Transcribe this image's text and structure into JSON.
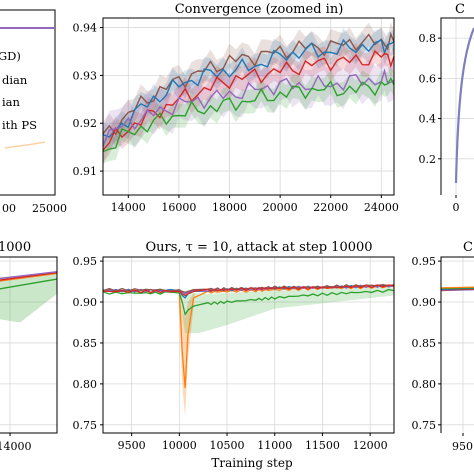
{
  "chart_data": [
    {
      "id": "top-left",
      "type": "line",
      "title": "",
      "xlabel": "",
      "ylabel": "",
      "xticks": [
        "00",
        "25000"
      ],
      "legend_entries": [
        "GD)",
        "dian",
        "ian",
        "ith PS"
      ]
    },
    {
      "id": "top-middle",
      "type": "line",
      "title": "Convergence (zoomed in)",
      "xlabel": "",
      "ylabel": "",
      "xlim": [
        13000,
        24500
      ],
      "ylim": [
        0.905,
        0.942
      ],
      "xticks": [
        14000,
        16000,
        18000,
        20000,
        22000,
        24000
      ],
      "yticks": [
        "0.91",
        "0.92",
        "0.93",
        "0.94"
      ],
      "grid": true,
      "x": [
        13000,
        14000,
        15000,
        16000,
        17000,
        18000,
        19000,
        20000,
        21000,
        22000,
        23000,
        24000,
        24500
      ],
      "series": [
        {
          "color": "#8c564b",
          "values": [
            0.917,
            0.922,
            0.926,
            0.929,
            0.931,
            0.933,
            0.934,
            0.935,
            0.936,
            0.936,
            0.937,
            0.937,
            0.937
          ]
        },
        {
          "color": "#1f77b4",
          "values": [
            0.916,
            0.921,
            0.925,
            0.928,
            0.93,
            0.931,
            0.932,
            0.934,
            0.935,
            0.935,
            0.936,
            0.936,
            0.937
          ]
        },
        {
          "color": "#d62728",
          "values": [
            0.915,
            0.919,
            0.922,
            0.925,
            0.927,
            0.929,
            0.93,
            0.931,
            0.932,
            0.933,
            0.933,
            0.934,
            0.934
          ]
        },
        {
          "color": "#9467bd",
          "values": [
            0.917,
            0.92,
            0.922,
            0.924,
            0.925,
            0.926,
            0.927,
            0.928,
            0.928,
            0.928,
            0.929,
            0.929,
            0.929
          ]
        },
        {
          "color": "#2ca02c",
          "values": [
            0.914,
            0.918,
            0.92,
            0.922,
            0.923,
            0.924,
            0.925,
            0.926,
            0.927,
            0.927,
            0.927,
            0.928,
            0.928
          ]
        }
      ]
    },
    {
      "id": "top-right",
      "type": "line",
      "title": "C",
      "xlabel": "",
      "ylabel": "",
      "xticks": [
        "0"
      ],
      "yticks": [
        "0.2",
        "0.4",
        "0.6",
        "0.8"
      ],
      "grid": true
    },
    {
      "id": "bottom-left",
      "type": "line",
      "title": "1000",
      "xlabel": "",
      "ylabel": "",
      "xticks": [
        "14000"
      ],
      "grid": true
    },
    {
      "id": "bottom-middle",
      "type": "line",
      "title": "Ours, τ = 10, attack at step 10000",
      "xlabel": "Training step",
      "ylabel": "",
      "xlim": [
        9200,
        12250
      ],
      "ylim": [
        0.74,
        0.955
      ],
      "xticks": [
        9500,
        10000,
        10500,
        11000,
        11500,
        12000
      ],
      "yticks": [
        "0.75",
        "0.80",
        "0.85",
        "0.90",
        "0.95"
      ],
      "grid": true,
      "x": [
        9200,
        9600,
        9900,
        10000,
        10030,
        10060,
        10090,
        10150,
        10300,
        10500,
        10800,
        11000,
        11300,
        11600,
        11900,
        12250
      ],
      "series": [
        {
          "color": "#ff7f0e",
          "values": [
            0.913,
            0.913,
            0.913,
            0.913,
            0.84,
            0.795,
            0.86,
            0.905,
            0.912,
            0.913,
            0.914,
            0.915,
            0.916,
            0.917,
            0.918,
            0.919
          ]
        },
        {
          "color": "#2ca02c",
          "values": [
            0.911,
            0.911,
            0.911,
            0.911,
            0.9,
            0.885,
            0.89,
            0.895,
            0.898,
            0.9,
            0.903,
            0.905,
            0.908,
            0.91,
            0.912,
            0.914
          ]
        },
        {
          "color": "#1f77b4",
          "values": [
            0.914,
            0.914,
            0.914,
            0.914,
            0.908,
            0.905,
            0.91,
            0.913,
            0.914,
            0.915,
            0.916,
            0.917,
            0.918,
            0.918,
            0.919,
            0.92
          ]
        },
        {
          "color": "#9467bd",
          "values": [
            0.914,
            0.914,
            0.914,
            0.914,
            0.912,
            0.91,
            0.912,
            0.914,
            0.915,
            0.915,
            0.916,
            0.917,
            0.918,
            0.918,
            0.919,
            0.92
          ]
        },
        {
          "color": "#8c564b",
          "values": [
            0.915,
            0.915,
            0.915,
            0.915,
            0.913,
            0.912,
            0.913,
            0.915,
            0.916,
            0.916,
            0.917,
            0.918,
            0.918,
            0.919,
            0.92,
            0.921
          ]
        },
        {
          "color": "#d62728",
          "values": [
            0.913,
            0.913,
            0.913,
            0.913,
            0.91,
            0.908,
            0.91,
            0.913,
            0.914,
            0.915,
            0.916,
            0.917,
            0.917,
            0.918,
            0.919,
            0.92
          ]
        }
      ]
    },
    {
      "id": "bottom-right",
      "type": "line",
      "title": "C",
      "xlabel": "",
      "ylabel": "",
      "xticks": [
        "950"
      ],
      "yticks": [
        "0.75",
        "0.80",
        "0.85",
        "0.90",
        "0.95"
      ],
      "grid": true
    }
  ]
}
